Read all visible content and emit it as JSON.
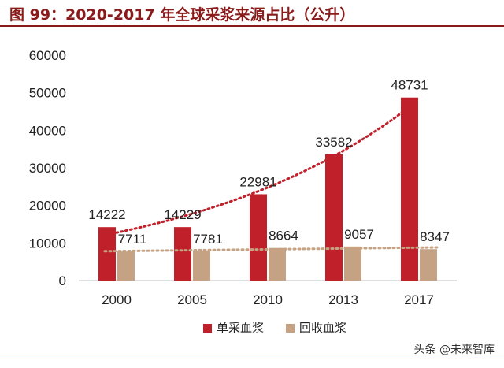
{
  "title": "图 99：2020-2017 年全球采浆来源占比（公升）",
  "watermark": "头条 @未来智库",
  "colors": {
    "series1": "#C0202A",
    "series2": "#C4A283",
    "title": "#8B1A1A"
  },
  "chart_data": {
    "type": "bar",
    "categories": [
      "2000",
      "2005",
      "2010",
      "2013",
      "2017"
    ],
    "series": [
      {
        "name": "单采血浆",
        "values": [
          14222,
          14229,
          22981,
          33582,
          48731
        ]
      },
      {
        "name": "回收血浆",
        "values": [
          7711,
          7781,
          8664,
          9057,
          8347
        ]
      }
    ],
    "yticks": [
      "0",
      "10000",
      "20000",
      "30000",
      "40000",
      "50000",
      "60000"
    ],
    "ylim": [
      0,
      60000
    ],
    "trendlines": [
      "dotted exponential trend for 单采血浆",
      "dotted linear trend for 回收血浆"
    ],
    "legend_position": "bottom"
  }
}
